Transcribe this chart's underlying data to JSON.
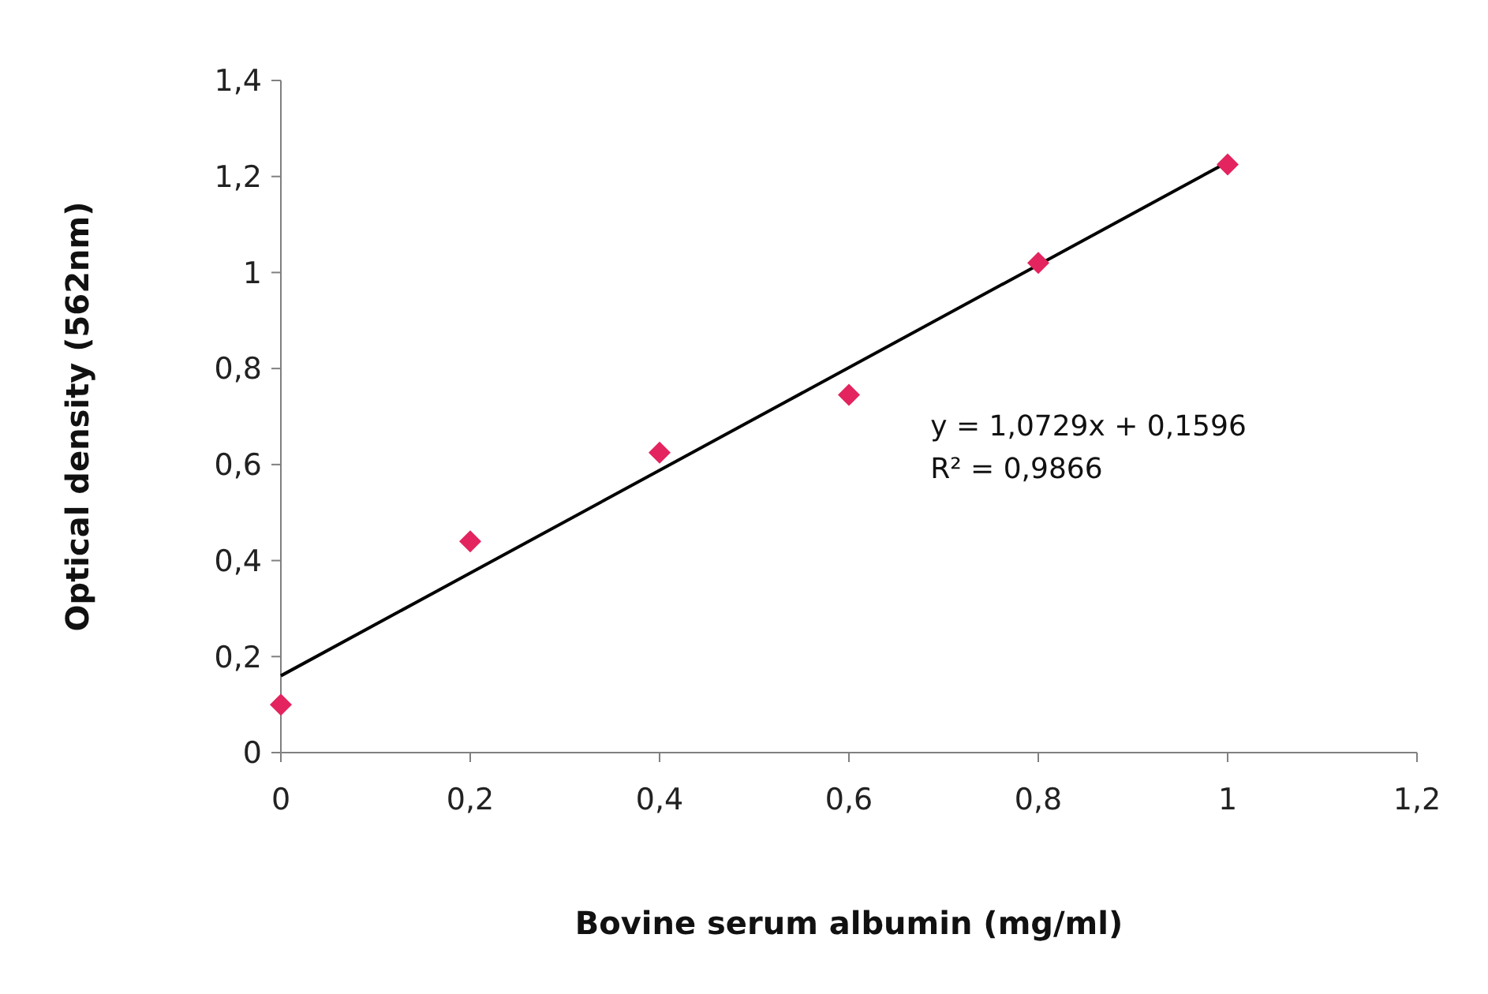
{
  "chart_data": {
    "type": "scatter",
    "xlabel": "Bovine serum albumin (mg/ml)",
    "ylabel": "Optical density (562nm)",
    "xlim": [
      0,
      1.2
    ],
    "xticks": [
      0,
      {
        "value": 0.2,
        "label": "0,2"
      },
      {
        "value": 0.4,
        "label": "0,4"
      },
      {
        "value": 0.6,
        "label": "0,6"
      },
      {
        "value": 0.8,
        "label": "0,8"
      },
      1,
      {
        "value": 1.2,
        "label": "1,2"
      }
    ],
    "ylim": [
      0,
      1.4
    ],
    "yticks": [
      0,
      {
        "value": 0.2,
        "label": "0,2"
      },
      {
        "value": 0.4,
        "label": "0,4"
      },
      {
        "value": 0.6,
        "label": "0,6"
      },
      {
        "value": 0.8,
        "label": "0,8"
      },
      1,
      {
        "value": 1.2,
        "label": "1,2"
      },
      {
        "value": 1.4,
        "label": "1,4"
      }
    ],
    "grid": false,
    "marker": "diamond",
    "series": [
      {
        "color": "#e3245f",
        "x": [
          0,
          0.2,
          0.4,
          0.6,
          0.8,
          1
        ],
        "values": [
          0.1,
          0.44,
          0.625,
          0.745,
          1.02,
          1.225
        ]
      },
      {
        "type": "line",
        "color": "#000000",
        "x": [
          0,
          1
        ],
        "values": [
          0.16,
          1.23
        ],
        "marker": "none",
        "line_style": "solid"
      }
    ],
    "annotations": [
      "y = 1,0729x + 0,1596",
      "R² = 0,9866"
    ]
  }
}
